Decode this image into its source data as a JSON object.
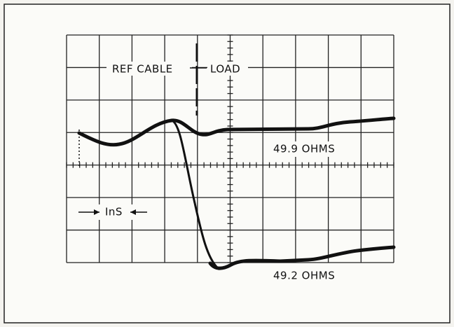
{
  "labels": {
    "ref_cable": "REF CABLE",
    "load": "LOAD",
    "upper_trace": "49.9 OHMS",
    "lower_trace": "49.2 OHMS",
    "time_scale": "InS"
  }
}
